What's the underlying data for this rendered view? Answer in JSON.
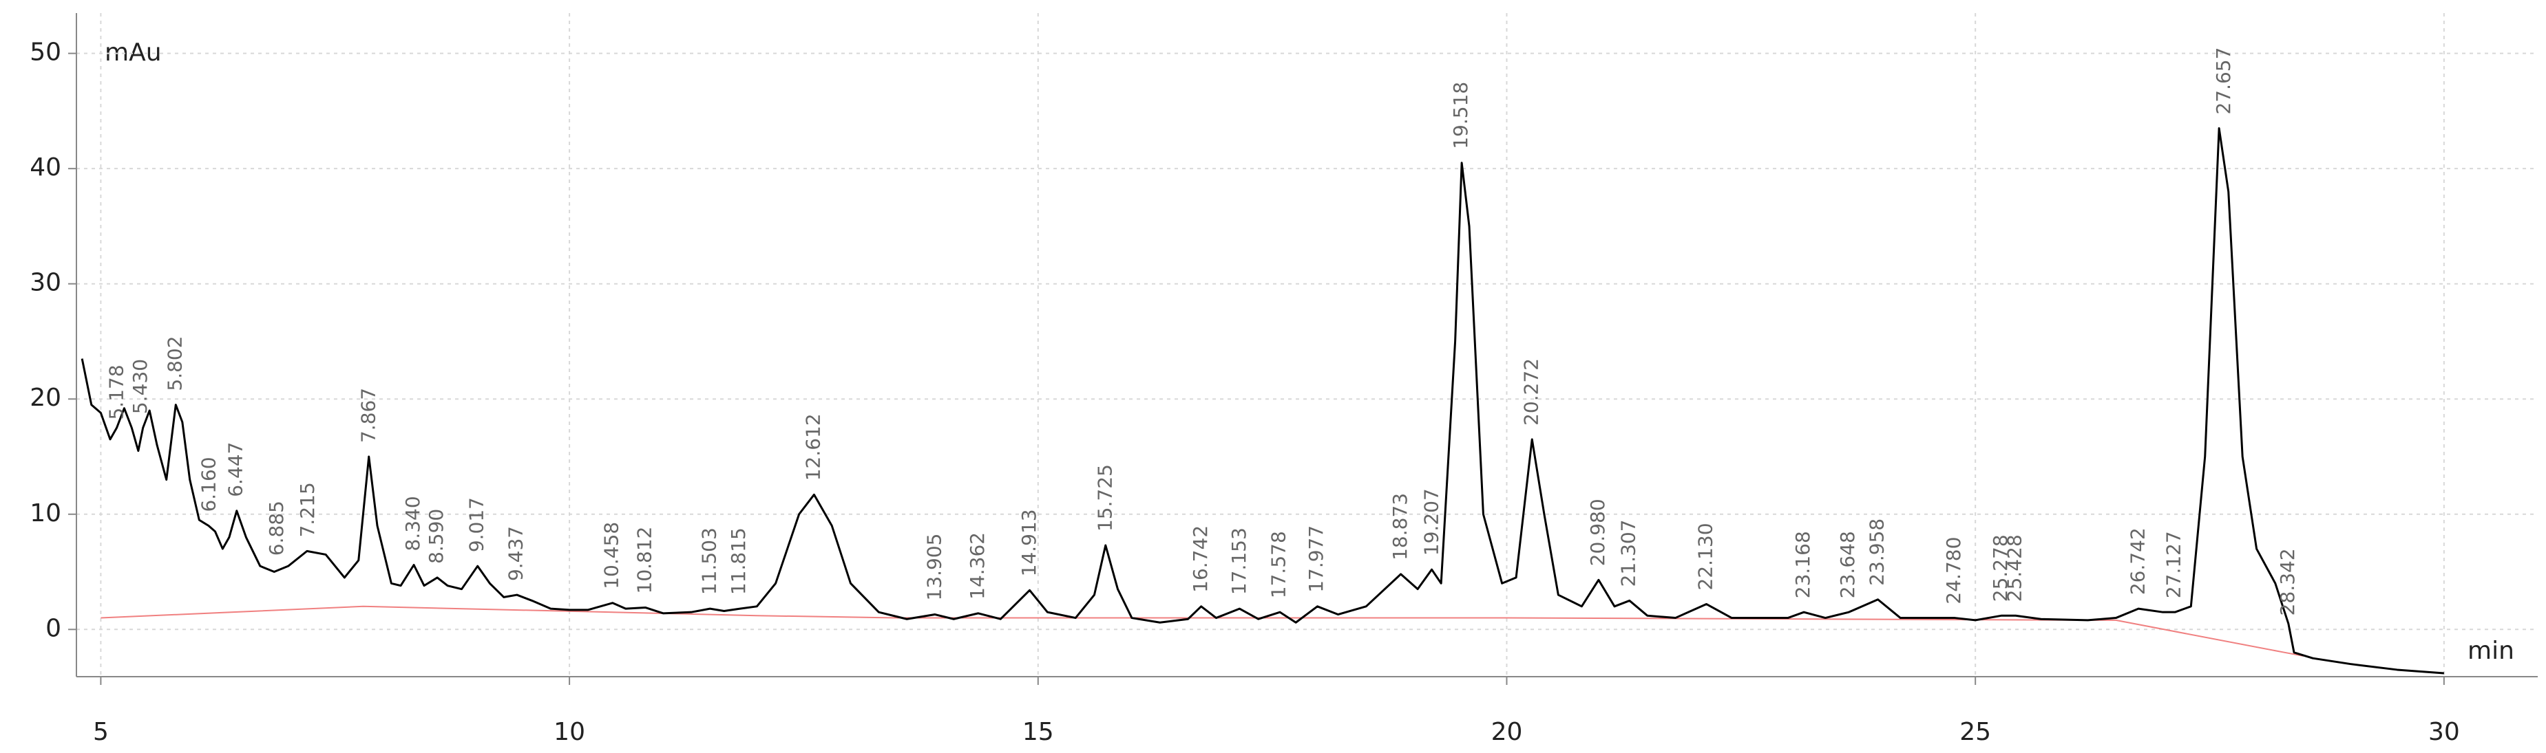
{
  "chart_data": {
    "type": "line",
    "y_label": "mAu",
    "x_label": "min",
    "xlim": [
      4.74,
      31.0
    ],
    "ylim": [
      -4.1,
      53.5
    ],
    "xticks": [
      5,
      10,
      15,
      20,
      25,
      30
    ],
    "yticks": [
      0,
      10,
      20,
      30,
      40,
      50
    ],
    "grid": true,
    "trace": {
      "color": "#000000",
      "x": [
        4.8,
        4.9,
        5.0,
        5.1,
        5.17,
        5.25,
        5.33,
        5.4,
        5.45,
        5.52,
        5.6,
        5.7,
        5.8,
        5.87,
        5.95,
        6.05,
        6.15,
        6.22,
        6.3,
        6.37,
        6.45,
        6.55,
        6.7,
        6.85,
        7.0,
        7.2,
        7.4,
        7.6,
        7.75,
        7.86,
        7.95,
        8.1,
        8.2,
        8.34,
        8.45,
        8.59,
        8.7,
        8.85,
        9.02,
        9.15,
        9.3,
        9.44,
        9.6,
        9.8,
        10.0,
        10.2,
        10.46,
        10.6,
        10.81,
        11.0,
        11.3,
        11.5,
        11.65,
        11.82,
        12.0,
        12.2,
        12.45,
        12.61,
        12.8,
        13.0,
        13.3,
        13.6,
        13.9,
        14.1,
        14.36,
        14.6,
        14.91,
        15.1,
        15.4,
        15.6,
        15.72,
        15.85,
        16.0,
        16.3,
        16.6,
        16.74,
        16.9,
        17.15,
        17.35,
        17.58,
        17.75,
        17.98,
        18.2,
        18.5,
        18.87,
        19.05,
        19.2,
        19.3,
        19.45,
        19.52,
        19.6,
        19.75,
        19.95,
        20.1,
        20.27,
        20.4,
        20.55,
        20.8,
        20.98,
        21.15,
        21.31,
        21.5,
        21.8,
        22.13,
        22.4,
        23.0,
        23.17,
        23.4,
        23.65,
        23.96,
        24.2,
        24.78,
        25.0,
        25.28,
        25.43,
        25.7,
        26.2,
        26.5,
        26.74,
        27.0,
        27.13,
        27.3,
        27.45,
        27.6,
        27.7,
        27.85,
        28.0,
        28.2,
        28.34,
        28.4,
        28.6,
        29.0,
        29.5,
        30.0
      ],
      "y": [
        23.5,
        19.5,
        18.8,
        16.5,
        17.5,
        19.2,
        17.5,
        15.5,
        17.5,
        19,
        16,
        13,
        19.5,
        18,
        13,
        9.5,
        9,
        8.5,
        7,
        8,
        10.3,
        8,
        5.5,
        5,
        5.5,
        6.8,
        6.5,
        4.5,
        6,
        15,
        9,
        4,
        3.8,
        5.6,
        3.8,
        4.5,
        3.8,
        3.5,
        5.5,
        4,
        2.8,
        3,
        2.5,
        1.8,
        1.7,
        1.7,
        2.3,
        1.8,
        1.9,
        1.4,
        1.5,
        1.8,
        1.6,
        1.8,
        2,
        4,
        10,
        11.7,
        9,
        4,
        1.5,
        0.9,
        1.3,
        0.9,
        1.4,
        0.9,
        3.4,
        1.5,
        1,
        3,
        7.3,
        3.5,
        1,
        0.6,
        0.9,
        2,
        1,
        1.8,
        0.9,
        1.5,
        0.6,
        2,
        1.3,
        2,
        4.8,
        3.5,
        5.2,
        4,
        25,
        40.5,
        35,
        10,
        4,
        4.5,
        16.5,
        10,
        3,
        2,
        4.3,
        2,
        2.5,
        1.2,
        1,
        2.2,
        1,
        1,
        1.5,
        1,
        1.5,
        2.6,
        1,
        1,
        0.8,
        1.2,
        1.2,
        0.9,
        0.8,
        1,
        1.8,
        1.5,
        1.5,
        2,
        15,
        43.5,
        38,
        15,
        7,
        4,
        0.5,
        -2,
        -2.5,
        -3,
        -3.5,
        -3.8
      ]
    },
    "baseline": {
      "color": "#f08080",
      "x": [
        5.0,
        7.8,
        12.0,
        13.5,
        20.0,
        26.5,
        28.3,
        28.5
      ],
      "y": [
        1.0,
        2.0,
        1.2,
        1.0,
        1.0,
        0.8,
        -2.0,
        -2.3
      ]
    },
    "peaks": {
      "times": [
        5.178,
        5.43,
        5.802,
        6.16,
        6.447,
        6.885,
        7.215,
        7.867,
        8.34,
        8.59,
        9.017,
        9.437,
        10.458,
        10.812,
        11.503,
        11.815,
        12.612,
        13.905,
        14.362,
        14.913,
        15.725,
        16.742,
        17.153,
        17.578,
        17.977,
        18.873,
        19.207,
        19.518,
        20.272,
        20.98,
        21.307,
        22.13,
        23.168,
        23.648,
        23.958,
        24.78,
        25.278,
        25.428,
        26.742,
        27.127,
        27.657,
        28.342
      ],
      "labels": [
        "5.178",
        "5.430",
        "5.802",
        "6.160",
        "6.447",
        "6.885",
        "7.215",
        "7.867",
        "8.340",
        "8.590",
        "9.017",
        "9.437",
        "10.458",
        "10.812",
        "11.503",
        "11.815",
        "12.612",
        "13.905",
        "14.362",
        "14.913",
        "15.725",
        "16.742",
        "17.153",
        "17.578",
        "17.977",
        "18.873",
        "19.207",
        "19.518",
        "20.272",
        "20.980",
        "21.307",
        "22.130",
        "23.168",
        "23.648",
        "23.958",
        "24.780",
        "25.278",
        "25.428",
        "26.742",
        "27.127",
        "27.657",
        "28.342"
      ],
      "heights": [
        17,
        17.5,
        19.5,
        9,
        10.3,
        5.2,
        6.8,
        15,
        5.6,
        4.5,
        5.5,
        3,
        2.3,
        1.9,
        1.8,
        1.8,
        11.7,
        1.3,
        1.4,
        3.4,
        7.3,
        2,
        1.8,
        1.5,
        2,
        4.8,
        5.2,
        40.5,
        16.5,
        4.3,
        2.5,
        2.2,
        1.5,
        1.5,
        2.6,
        1,
        1.2,
        1.2,
        1.8,
        1.5,
        43.5,
        0
      ]
    }
  }
}
